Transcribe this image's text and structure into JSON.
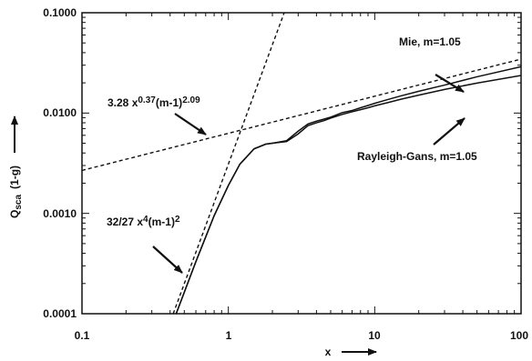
{
  "chart_data": {
    "type": "line",
    "title": "",
    "xscale": "log",
    "yscale": "log",
    "xlim": [
      0.1,
      100
    ],
    "ylim": [
      0.0001,
      0.1
    ],
    "x_ticks": [
      {
        "value": 0.1,
        "label": "0.1"
      },
      {
        "value": 1,
        "label": "1"
      },
      {
        "value": 10,
        "label": "10"
      },
      {
        "value": 100,
        "label": "100"
      }
    ],
    "y_ticks": [
      {
        "value": 0.0001,
        "label": "0.0001"
      },
      {
        "value": 0.001,
        "label": "0.0010"
      },
      {
        "value": 0.01,
        "label": "0.0100"
      },
      {
        "value": 0.1,
        "label": "0.1000"
      }
    ],
    "xlabel": "x",
    "ylabel": {
      "main": "Q",
      "sub": "sca",
      "rest": "(1-g)"
    },
    "grid": false,
    "series": [
      {
        "name": "Mie, m=1.05",
        "style": "solid",
        "x": [
          0.44,
          0.6,
          0.8,
          1.0,
          1.2,
          1.5,
          1.8,
          2.0,
          2.5,
          3.0,
          3.5,
          4.0,
          4.5,
          5,
          6,
          7,
          8,
          9,
          10,
          12,
          15,
          20,
          30,
          50,
          100
        ],
        "y": [
          0.0001,
          0.00033,
          0.00095,
          0.0019,
          0.0031,
          0.0044,
          0.0049,
          0.005,
          0.0053,
          0.0066,
          0.0078,
          0.0083,
          0.0087,
          0.0091,
          0.0101,
          0.0106,
          0.0113,
          0.0119,
          0.0125,
          0.0135,
          0.0148,
          0.0165,
          0.019,
          0.023,
          0.029
        ]
      },
      {
        "name": "Rayleigh-Gans, m=1.05",
        "style": "solid",
        "x": [
          0.44,
          0.6,
          0.8,
          1.0,
          1.2,
          1.5,
          1.8,
          2.0,
          2.5,
          3.0,
          3.5,
          4.0,
          4.5,
          5,
          6,
          7,
          8,
          9,
          10,
          12,
          15,
          20,
          30,
          50,
          100
        ],
        "y": [
          0.0001,
          0.00033,
          0.00095,
          0.0019,
          0.0031,
          0.0044,
          0.0049,
          0.005,
          0.0052,
          0.0062,
          0.0075,
          0.008,
          0.0084,
          0.0089,
          0.0097,
          0.0103,
          0.0108,
          0.0113,
          0.0118,
          0.0126,
          0.0137,
          0.0151,
          0.0172,
          0.0199,
          0.0237
        ]
      },
      {
        "name": "3.28 x^0.37 (m-1)^2.09",
        "style": "dashed",
        "x": [
          0.1,
          100
        ],
        "y": [
          0.00268,
          0.0345
        ]
      },
      {
        "name": "32/27 x^4 (m-1)^2",
        "style": "dashed",
        "x": [
          0.42,
          2.5
        ],
        "y": [
          0.0001,
          0.116
        ]
      }
    ],
    "annotations": [
      {
        "label": "Mie, m=1.05"
      },
      {
        "label": "Rayleigh-Gans, m=1.05"
      },
      {
        "prefix": "3.28 x",
        "sup1": "0.37",
        "mid": "(m-1)",
        "sup2": "2.09"
      },
      {
        "prefix": "32/27 x",
        "sup1": "4",
        "mid": "(m-1)",
        "sup2": "2"
      }
    ]
  }
}
